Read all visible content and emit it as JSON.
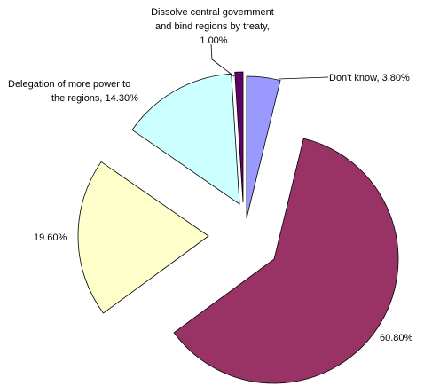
{
  "chart_data": {
    "type": "pie",
    "exploded": true,
    "slices": [
      {
        "label": "Don't know, 3.80%",
        "value": 3.8,
        "color": "#9999ff"
      },
      {
        "label": "60.80%",
        "value": 60.8,
        "color": "#993366"
      },
      {
        "label": "19.60%",
        "value": 19.6,
        "color": "#ffffcc"
      },
      {
        "label": "Delegation of more power to the regions, 14.30%",
        "label_lines": [
          "Delegation of more power to",
          "the regions, 14.30%"
        ],
        "value": 14.3,
        "color": "#ccffff"
      },
      {
        "label": "Dissolve central government and bind regions by treaty, 1.00%",
        "label_lines": [
          "Dissolve central government",
          "and bind regions by treaty,",
          "1.00%"
        ],
        "value": 1.0,
        "color": "#660066"
      }
    ]
  }
}
